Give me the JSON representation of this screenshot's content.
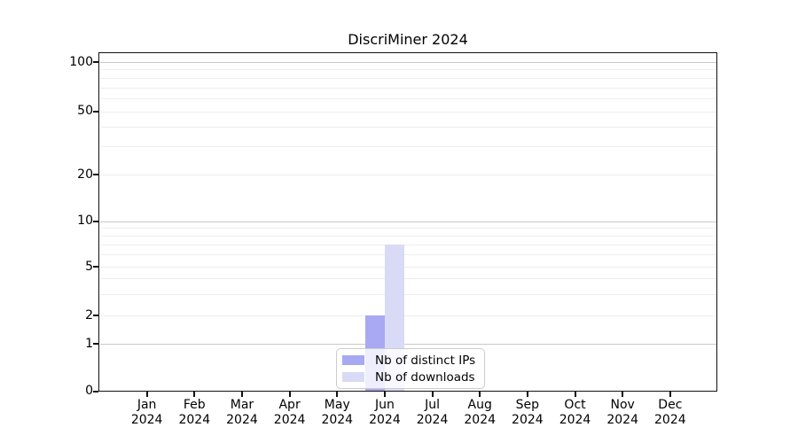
{
  "title": "DiscriMiner 2024",
  "chart_data": {
    "type": "bar",
    "title": "DiscriMiner 2024",
    "x_categories": [
      {
        "month": "Jan",
        "year": "2024"
      },
      {
        "month": "Feb",
        "year": "2024"
      },
      {
        "month": "Mar",
        "year": "2024"
      },
      {
        "month": "Apr",
        "year": "2024"
      },
      {
        "month": "May",
        "year": "2024"
      },
      {
        "month": "Jun",
        "year": "2024"
      },
      {
        "month": "Jul",
        "year": "2024"
      },
      {
        "month": "Aug",
        "year": "2024"
      },
      {
        "month": "Sep",
        "year": "2024"
      },
      {
        "month": "Oct",
        "year": "2024"
      },
      {
        "month": "Nov",
        "year": "2024"
      },
      {
        "month": "Dec",
        "year": "2024"
      }
    ],
    "series": [
      {
        "name": "Nb of distinct IPs",
        "color": "#a8a9f2",
        "values": [
          0,
          0,
          0,
          0,
          0,
          2,
          0,
          0,
          0,
          0,
          0,
          0
        ]
      },
      {
        "name": "Nb of downloads",
        "color": "#d9daf5",
        "values": [
          0,
          0,
          0,
          0,
          0,
          7,
          0,
          0,
          0,
          0,
          0,
          0
        ]
      }
    ],
    "y_axis": {
      "scale": "log1p",
      "tick_labels": [
        "100",
        "50",
        "20",
        "10",
        "5",
        "2",
        "1",
        "0"
      ],
      "tick_values": [
        100,
        50,
        20,
        10,
        5,
        2,
        1,
        0
      ],
      "major_gridlines": [
        1,
        10,
        100
      ],
      "minor_gridlines": [
        2,
        3,
        4,
        5,
        6,
        7,
        8,
        9,
        20,
        30,
        40,
        50,
        60,
        70,
        80,
        90
      ],
      "ylim": [
        0,
        110
      ]
    },
    "legend_position": "lower center",
    "grid": "horizontal only"
  },
  "colors": {
    "background": "#ffffff",
    "spine": "#111111",
    "text": "#000000",
    "major_grid": "#c8c8c8",
    "minor_grid": "#ededed",
    "legend_border": "#cccccc"
  }
}
